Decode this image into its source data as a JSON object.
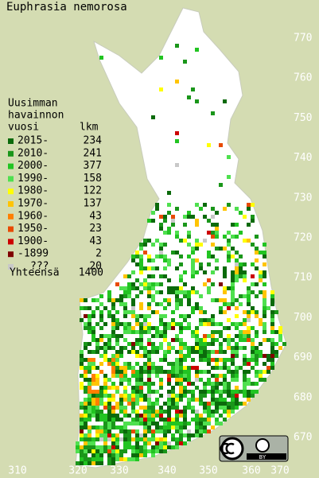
{
  "title": "Euphrasia nemorosa",
  "legend": {
    "heading": [
      "Uusimman",
      "havainnon",
      "vuosi"
    ],
    "count_heading": "lkm",
    "entries": [
      {
        "label": "2015-",
        "count": 234,
        "color": "#0b6a0b"
      },
      {
        "label": "2010-",
        "count": 241,
        "color": "#1a961a"
      },
      {
        "label": "2000-",
        "count": 377,
        "color": "#22c422"
      },
      {
        "label": "1990-",
        "count": 158,
        "color": "#4fe04f"
      },
      {
        "label": "1980-",
        "count": 122,
        "color": "#ffff00"
      },
      {
        "label": "1970-",
        "count": 137,
        "color": "#ffc400"
      },
      {
        "label": "1960-",
        "count": 43,
        "color": "#ff7f00"
      },
      {
        "label": "1950-",
        "count": 23,
        "color": "#e84a00"
      },
      {
        "label": "1900-",
        "count": 43,
        "color": "#cc0000"
      },
      {
        "label": "-1899",
        "count": 2,
        "color": "#7f0000"
      },
      {
        "label": "???",
        "count": 20,
        "color": "#c8c8c8"
      }
    ],
    "total_label": "Yhteensä",
    "total": 1400
  },
  "grid_labels": {
    "north": [
      770,
      760,
      750,
      740,
      730,
      720,
      710,
      700,
      690,
      680,
      670
    ],
    "east": [
      310,
      320,
      330,
      340,
      350,
      360,
      370
    ]
  },
  "license": {
    "label": "BY"
  }
}
